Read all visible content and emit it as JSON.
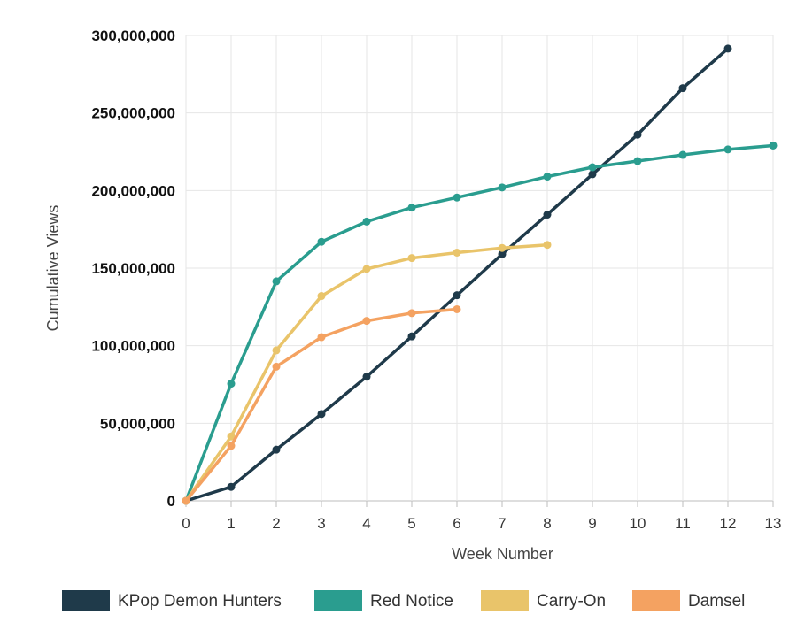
{
  "chart_data": {
    "type": "line",
    "title": "",
    "xlabel": "Week Number",
    "ylabel": "Cumulative Views",
    "x": [
      0,
      1,
      2,
      3,
      4,
      5,
      6,
      7,
      8,
      9,
      10,
      11,
      12,
      13
    ],
    "xlim": [
      0,
      13
    ],
    "ylim": [
      0,
      300000000
    ],
    "y_ticks": [
      0,
      50000000,
      100000000,
      150000000,
      200000000,
      250000000,
      300000000
    ],
    "y_tick_labels": [
      "0",
      "50,000,000",
      "100,000,000",
      "150,000,000",
      "200,000,000",
      "250,000,000",
      "300,000,000"
    ],
    "x_tick_labels": [
      "0",
      "1",
      "2",
      "3",
      "4",
      "5",
      "6",
      "7",
      "8",
      "9",
      "10",
      "11",
      "12",
      "13"
    ],
    "grid": true,
    "legend_position": "bottom",
    "series": [
      {
        "name": "KPop Demon Hunters",
        "color": "#1f3a4a",
        "x": [
          0,
          1,
          2,
          3,
          4,
          5,
          6,
          7,
          8,
          9,
          10,
          11,
          12
        ],
        "values": [
          0,
          9000000,
          33000000,
          56000000,
          80000000,
          106000000,
          132500000,
          159000000,
          184500000,
          210500000,
          236000000,
          266000000,
          291500000
        ]
      },
      {
        "name": "Red Notice",
        "color": "#2a9d8f",
        "x": [
          0,
          1,
          2,
          3,
          4,
          5,
          6,
          7,
          8,
          9,
          10,
          11,
          12,
          13
        ],
        "values": [
          0,
          75500000,
          141500000,
          167000000,
          180000000,
          189000000,
          195500000,
          202000000,
          209000000,
          215000000,
          219000000,
          223000000,
          226500000,
          229000000
        ]
      },
      {
        "name": "Carry-On",
        "color": "#e9c46a",
        "x": [
          0,
          1,
          2,
          3,
          4,
          5,
          6,
          7,
          8
        ],
        "values": [
          0,
          41500000,
          97000000,
          132000000,
          149500000,
          156500000,
          160000000,
          163000000,
          165000000
        ]
      },
      {
        "name": "Damsel",
        "color": "#f4a261",
        "x": [
          0,
          1,
          2,
          3,
          4,
          5,
          6
        ],
        "values": [
          0,
          35500000,
          86500000,
          105500000,
          116000000,
          121000000,
          123500000
        ]
      }
    ]
  }
}
